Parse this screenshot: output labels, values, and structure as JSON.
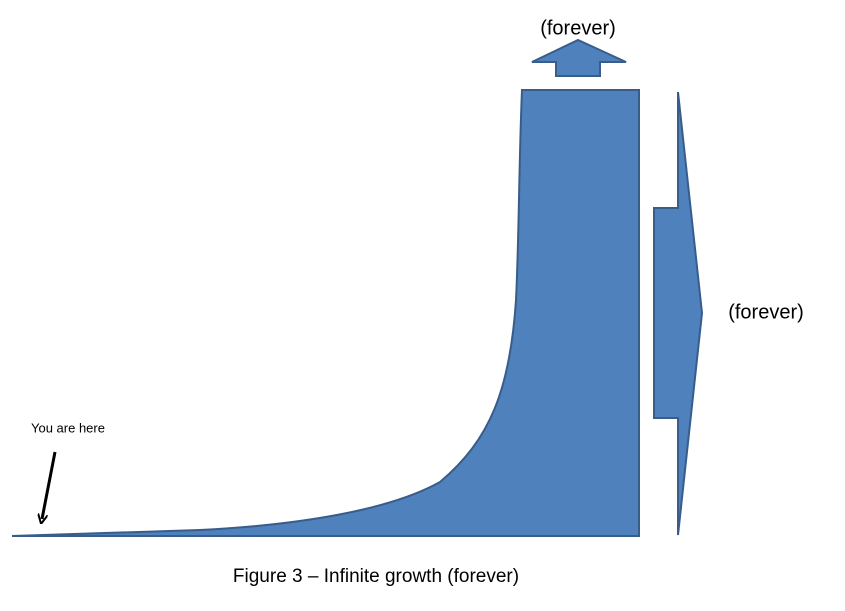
{
  "labels": {
    "top_arrow": "(forever)",
    "right_arrow": "(forever)",
    "pointer": "You are here"
  },
  "caption": "Figure 3 – Infinite growth (forever)"
}
